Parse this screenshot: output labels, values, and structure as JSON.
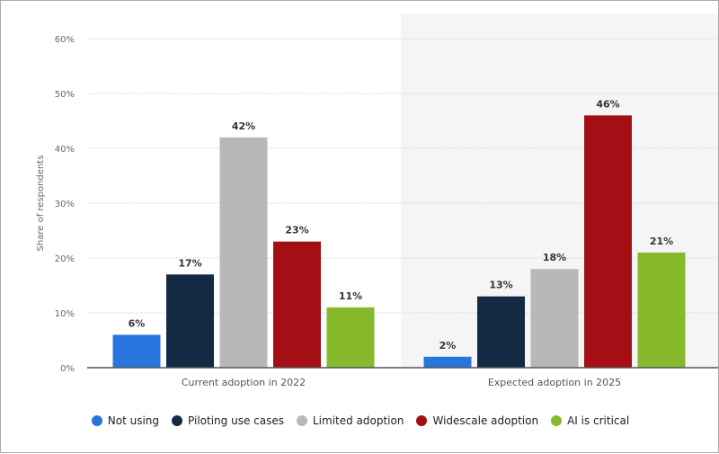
{
  "chart_data": {
    "type": "bar",
    "categories": [
      "Current adoption in 2022",
      "Expected adoption in 2025"
    ],
    "series": [
      {
        "name": "Not using",
        "color": "#2876dd",
        "values": [
          6,
          2
        ]
      },
      {
        "name": "Piloting use cases",
        "color": "#142a44",
        "values": [
          17,
          13
        ]
      },
      {
        "name": "Limited adoption",
        "color": "#b8b8b8",
        "values": [
          42,
          18
        ]
      },
      {
        "name": "Widescale adoption",
        "color": "#a30f14",
        "values": [
          23,
          46
        ]
      },
      {
        "name": "AI is critical",
        "color": "#86b92b",
        "values": [
          11,
          21
        ]
      }
    ],
    "ylabel": "Share of respondents",
    "ylim": [
      0,
      60
    ],
    "yticks": [
      "0%",
      "10%",
      "20%",
      "30%",
      "40%",
      "50%",
      "60%"
    ],
    "grid": true,
    "legend": "bottom",
    "highlighted_category": "Expected adoption in 2025"
  }
}
